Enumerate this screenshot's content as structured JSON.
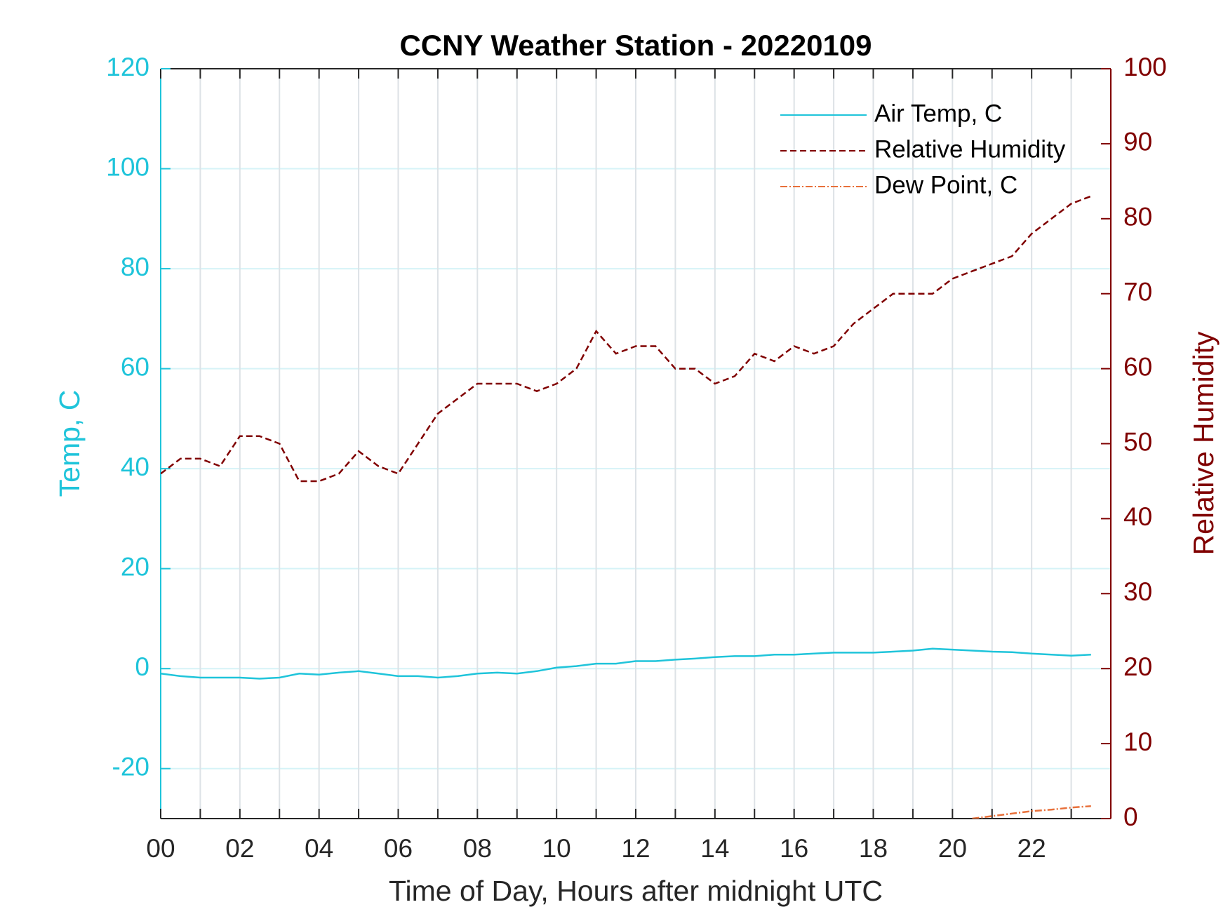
{
  "chart_data": {
    "type": "line",
    "title": "CCNY Weather Station - 20220109",
    "x_label": "Time of Day, Hours after midnight UTC",
    "y_label": "Temp, C",
    "y2_label": "Relative Humidity",
    "x": [
      0,
      0.5,
      1,
      1.5,
      2,
      2.5,
      3,
      3.5,
      4,
      4.5,
      5,
      5.5,
      6,
      6.5,
      7,
      7.5,
      8,
      8.5,
      9,
      9.5,
      10,
      10.5,
      11,
      11.5,
      12,
      12.5,
      13,
      13.5,
      14,
      14.5,
      15,
      15.5,
      16,
      16.5,
      17,
      17.5,
      18,
      18.5,
      19,
      19.5,
      20,
      20.5,
      21,
      21.5,
      22,
      22.5,
      23,
      23.5
    ],
    "series": [
      {
        "name": "Air Temp, C",
        "color": "#1fc4da",
        "dash": "solid",
        "values": [
          -1,
          -1.5,
          -1.8,
          -1.8,
          -1.8,
          -2,
          -1.8,
          -1,
          -1.2,
          -0.8,
          -0.5,
          -1,
          -1.5,
          -1.5,
          -1.8,
          -1.5,
          -1,
          -0.8,
          -1,
          -0.5,
          0.2,
          0.5,
          1,
          1,
          1.5,
          1.5,
          1.8,
          2,
          2.3,
          2.5,
          2.5,
          2.8,
          2.8,
          3,
          3.2,
          3.2,
          3.2,
          3.4,
          3.6,
          4,
          3.8,
          3.6,
          3.4,
          3.3,
          3,
          2.8,
          2.6,
          2.8
        ]
      },
      {
        "name": "Relative Humidity",
        "color": "#800000",
        "dash": "dashed",
        "axis": "y2",
        "values": [
          46,
          48,
          48,
          47,
          51,
          51,
          50,
          45,
          45,
          46,
          49,
          47,
          46,
          50,
          54,
          56,
          58,
          58,
          58,
          57,
          58,
          60,
          65,
          62,
          63,
          63,
          60,
          60,
          58,
          59,
          62,
          61,
          63,
          62,
          63,
          66,
          68,
          70,
          70,
          70,
          72,
          73,
          74,
          75,
          78,
          80,
          82,
          83
        ]
      },
      {
        "name": "Dew Point, C",
        "color": "#e8703a",
        "dash": "dashdot",
        "values": [
          null,
          null,
          null,
          null,
          null,
          null,
          null,
          null,
          null,
          null,
          null,
          null,
          null,
          null,
          null,
          null,
          null,
          null,
          null,
          null,
          null,
          null,
          null,
          null,
          null,
          null,
          null,
          null,
          null,
          null,
          null,
          null,
          null,
          null,
          null,
          null,
          null,
          null,
          null,
          null,
          null,
          -30,
          -29.5,
          -29,
          -28.5,
          -28.2,
          -27.8,
          -27.5
        ]
      }
    ],
    "xlim": [
      0,
      24
    ],
    "xticks": [
      {
        "value": 0,
        "label": "00"
      },
      {
        "value": 2,
        "label": "02"
      },
      {
        "value": 4,
        "label": "04"
      },
      {
        "value": 6,
        "label": "06"
      },
      {
        "value": 8,
        "label": "08"
      },
      {
        "value": 10,
        "label": "10"
      },
      {
        "value": 12,
        "label": "12"
      },
      {
        "value": 14,
        "label": "14"
      },
      {
        "value": 16,
        "label": "16"
      },
      {
        "value": 18,
        "label": "18"
      },
      {
        "value": 20,
        "label": "20"
      },
      {
        "value": 22,
        "label": "22"
      }
    ],
    "xminorticks": [
      1,
      3,
      5,
      7,
      9,
      11,
      13,
      15,
      17,
      19,
      21,
      23
    ],
    "ylim": [
      -30,
      120
    ],
    "yticks": [
      -20,
      0,
      20,
      40,
      60,
      80,
      100,
      120
    ],
    "y2lim": [
      0,
      100
    ],
    "y2ticks": [
      0,
      10,
      20,
      30,
      40,
      50,
      60,
      70,
      80,
      90,
      100
    ],
    "y_color": "#1fc4da",
    "y2_color": "#800000",
    "grid": true,
    "legend": "top-right"
  }
}
